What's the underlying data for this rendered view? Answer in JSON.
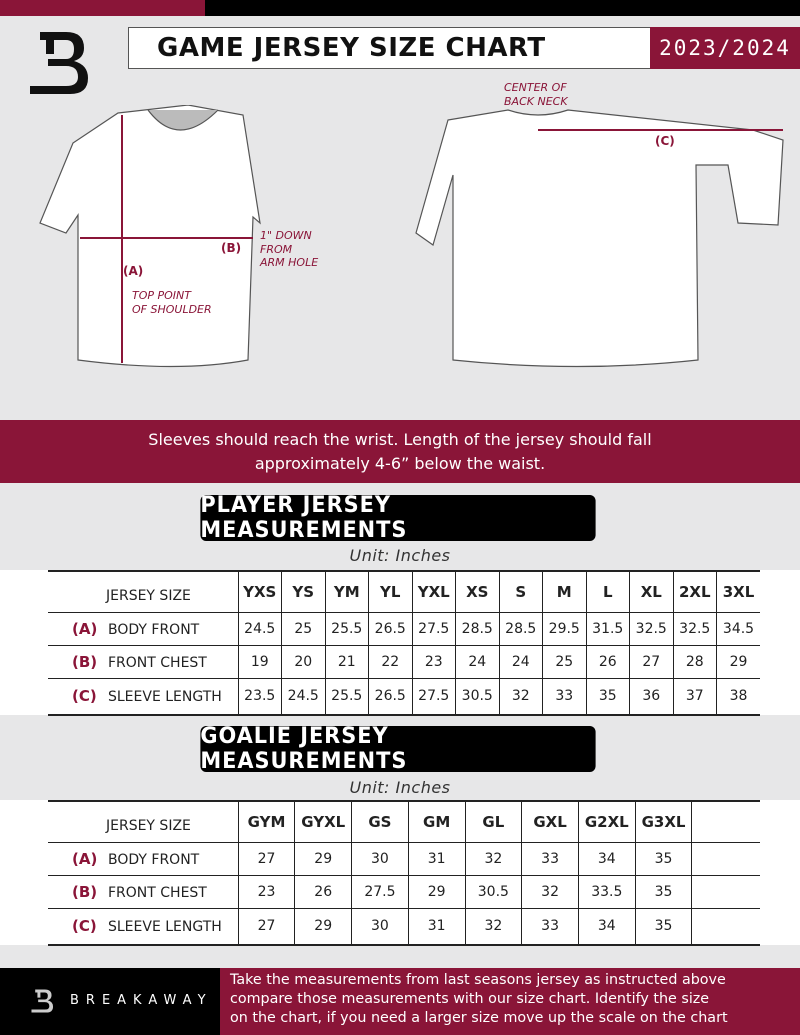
{
  "header": {
    "title": "GAME JERSEY SIZE CHART",
    "season": "2023/2024"
  },
  "diagram": {
    "front_labels": {
      "a": "(A)",
      "a_desc": [
        "TOP POINT",
        "OF SHOULDER"
      ],
      "b": "(B)",
      "b_desc": [
        "1\" DOWN",
        "FROM",
        "ARM HOLE"
      ]
    },
    "back_labels": {
      "c": "(C)",
      "c_desc": [
        "CENTER OF",
        "BACK NECK"
      ]
    }
  },
  "instruction_band": [
    "Sleeves should reach the wrist. Length of the jersey should fall",
    "approximately 4-6” below the waist."
  ],
  "player": {
    "title": "PLAYER JERSEY MEASUREMENTS",
    "unit": "Unit: Inches",
    "size_header": "JERSEY SIZE",
    "sizes": [
      "YXS",
      "YS",
      "YM",
      "YL",
      "YXL",
      "XS",
      "S",
      "M",
      "L",
      "XL",
      "2XL",
      "3XL"
    ],
    "rows": [
      {
        "code": "(A)",
        "name": "BODY FRONT",
        "values": [
          "24.5",
          "25",
          "25.5",
          "26.5",
          "27.5",
          "28.5",
          "28.5",
          "29.5",
          "31.5",
          "32.5",
          "32.5",
          "34.5"
        ]
      },
      {
        "code": "(B)",
        "name": "FRONT CHEST",
        "values": [
          "19",
          "20",
          "21",
          "22",
          "23",
          "24",
          "24",
          "25",
          "26",
          "27",
          "28",
          "29"
        ]
      },
      {
        "code": "(C)",
        "name": "SLEEVE LENGTH",
        "values": [
          "23.5",
          "24.5",
          "25.5",
          "26.5",
          "27.5",
          "30.5",
          "32",
          "33",
          "35",
          "36",
          "37",
          "38"
        ]
      }
    ]
  },
  "goalie": {
    "title": "GOALIE JERSEY MEASUREMENTS",
    "unit": "Unit: Inches",
    "size_header": "JERSEY SIZE",
    "sizes": [
      "GYM",
      "GYXL",
      "GS",
      "GM",
      "GL",
      "GXL",
      "G2XL",
      "G3XL",
      ""
    ],
    "rows": [
      {
        "code": "(A)",
        "name": "BODY FRONT",
        "values": [
          "27",
          "29",
          "30",
          "31",
          "32",
          "33",
          "34",
          "35",
          ""
        ]
      },
      {
        "code": "(B)",
        "name": "FRONT CHEST",
        "values": [
          "23",
          "26",
          "27.5",
          "29",
          "30.5",
          "32",
          "33.5",
          "35",
          ""
        ]
      },
      {
        "code": "(C)",
        "name": "SLEEVE LENGTH",
        "values": [
          "27",
          "29",
          "30",
          "31",
          "32",
          "33",
          "34",
          "35",
          ""
        ]
      }
    ]
  },
  "footer": {
    "brand": "BREAKAWAY",
    "text": [
      "Take the measurements from last seasons jersey as instructed above",
      "compare those measurements  with our size chart. Identify the size",
      "on the chart, if you need a larger size move up the scale on the chart"
    ]
  },
  "colors": {
    "brand": "#8a1538",
    "dark": "#000000",
    "background": "#e7e7e8"
  }
}
